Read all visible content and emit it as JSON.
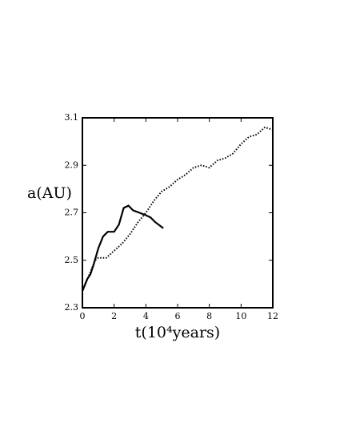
{
  "chart_data": {
    "type": "line",
    "xlabel": "t(10⁴years)",
    "ylabel": "a(AU)",
    "xlim": [
      0,
      12
    ],
    "xticks": [
      0,
      2,
      4,
      6,
      8,
      10,
      12
    ],
    "ylim": [
      2.3,
      3.1
    ],
    "yticks": [
      2.3,
      2.5,
      2.7,
      2.9,
      3.1
    ],
    "series": [
      {
        "color": "#000000",
        "style": "solid",
        "x": [
          0,
          0.3,
          0.5,
          0.7,
          1.0,
          1.3,
          1.6,
          2.0,
          2.3,
          2.6,
          2.9,
          3.2,
          3.6,
          4.0,
          4.3,
          4.6,
          5.0,
          5.1
        ],
        "values": [
          2.37,
          2.42,
          2.44,
          2.48,
          2.55,
          2.6,
          2.62,
          2.62,
          2.65,
          2.72,
          2.73,
          2.71,
          2.7,
          2.69,
          2.68,
          2.66,
          2.64,
          2.635
        ]
      },
      {
        "color": "#000000",
        "style": "dotted",
        "x": [
          0,
          0.5,
          0.8,
          1.0,
          1.5,
          2.0,
          2.5,
          3.0,
          3.5,
          4.0,
          4.5,
          5.0,
          5.5,
          6.0,
          6.5,
          7.0,
          7.5,
          8.0,
          8.5,
          9.0,
          9.5,
          10.0,
          10.5,
          11.0,
          11.5,
          12.0
        ],
        "values": [
          2.37,
          2.45,
          2.5,
          2.51,
          2.51,
          2.54,
          2.57,
          2.61,
          2.66,
          2.7,
          2.75,
          2.79,
          2.81,
          2.84,
          2.86,
          2.89,
          2.9,
          2.89,
          2.92,
          2.93,
          2.95,
          2.99,
          3.02,
          3.03,
          3.06,
          3.05
        ]
      }
    ]
  }
}
